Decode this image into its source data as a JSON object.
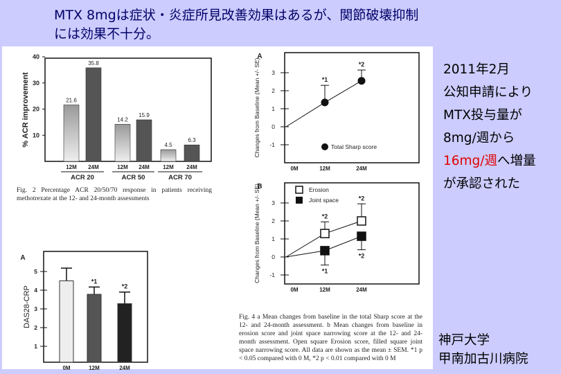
{
  "slide": {
    "title_lines": [
      "MTX 8mgは症状・炎症所見改善効果はあるが、関節破壊抑制",
      "には効果不十分。"
    ],
    "side_note": {
      "l1": "2011年2月",
      "l2": "公知申請により",
      "l3": "MTX投与量が",
      "l4": "8mg/週から",
      "l5_red": "16mg/週",
      "l5_rest": "へ増量",
      "l6": "が承認された"
    },
    "affiliation": [
      "神戸大学",
      "甲南加古川病院"
    ],
    "colors": {
      "background": "#ccccff",
      "title": "#000066",
      "highlight": "#e00000"
    }
  },
  "captions": {
    "fig2": "Fig. 2 Percentage ACR 20/50/70 response in patients receiving methotrexate at the 12- and 24-month assessments",
    "fig4": "Fig. 4 a Mean changes from baseline in the total Sharp score at the 12- and 24-month assessment. b Mean changes from baseline in erosion score and joint space narrowing score at the 12- and 24-month assessment. Open square Erosion score, filled square joint space narrowing score. All data are shown as the mean ± SEM. *1 p < 0.05 compared with 0 M, *2 p < 0.01 compared with 0 M"
  },
  "chart_data": [
    {
      "id": "acr",
      "type": "bar",
      "title": "",
      "ylabel": "% ACR improvement",
      "ylim": [
        0,
        40
      ],
      "yticks": [
        10,
        20,
        30,
        40
      ],
      "groups": [
        "ACR 20",
        "ACR 50",
        "ACR 70"
      ],
      "categories": [
        "12M",
        "24M"
      ],
      "values": [
        [
          21.6,
          35.8
        ],
        [
          14.2,
          15.9
        ],
        [
          4.5,
          6.3
        ]
      ],
      "value_labels": [
        [
          "21.6",
          "35.8"
        ],
        [
          "14.2",
          "15.9"
        ],
        [
          "4.5",
          "6.3"
        ]
      ]
    },
    {
      "id": "sharp",
      "type": "line",
      "panel_label": "A",
      "ylabel": "Changes from Baseline (Mean +/- SE)",
      "ylim": [
        -2,
        3.8
      ],
      "yticks": [
        3,
        2,
        1,
        0,
        -1
      ],
      "x": [
        "0M",
        "12M",
        "24M"
      ],
      "series": [
        {
          "name": "Total Sharp score",
          "values": [
            0,
            1.35,
            2.55
          ],
          "err_upper": [
            null,
            2.3,
            3.15
          ],
          "marks": [
            "",
            "*1",
            "*2"
          ]
        }
      ]
    },
    {
      "id": "erosion",
      "type": "line",
      "panel_label": "B",
      "ylabel": "Changes from Baseline (Mean +/- SE)",
      "ylim": [
        -2,
        3.8
      ],
      "yticks": [
        3,
        2,
        1,
        0,
        -1
      ],
      "x": [
        "0M",
        "12M",
        "24M"
      ],
      "series": [
        {
          "name": "Erosion",
          "values": [
            0,
            1.3,
            2.0
          ],
          "err_upper": [
            null,
            1.95,
            2.95
          ],
          "marks": [
            "",
            "*2",
            "*2"
          ]
        },
        {
          "name": "Joint space",
          "values": [
            0,
            0.35,
            1.15
          ],
          "err_lower": [
            null,
            -0.45,
            0.4
          ],
          "marks": [
            "",
            "*1",
            "*2"
          ]
        }
      ]
    },
    {
      "id": "das",
      "type": "bar",
      "panel_label": "A",
      "ylabel": "DAS28-CRP",
      "ylim": [
        0,
        5.8
      ],
      "yticks": [
        1,
        2,
        3,
        4,
        5
      ],
      "categories": [
        "0M",
        "12M",
        "24M"
      ],
      "values": [
        4.5,
        3.78,
        3.28
      ],
      "err_upper": [
        5.18,
        4.17,
        3.9
      ],
      "marks": [
        "",
        "*1",
        "*2"
      ]
    }
  ]
}
